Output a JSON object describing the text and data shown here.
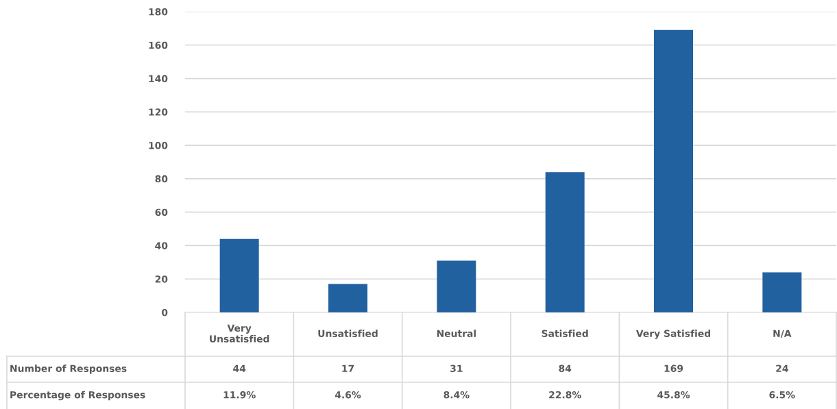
{
  "chart_data": {
    "type": "bar",
    "categories": [
      "Very Unsatisfied",
      "Unsatisfied",
      "Neutral",
      "Satisfied",
      "Very Satisfied",
      "N/A"
    ],
    "series": [
      {
        "name": "Number of Responses",
        "color": "#22619f",
        "values": [
          44,
          17,
          31,
          84,
          169,
          24
        ]
      }
    ],
    "data_labels": true,
    "annotations": [
      "Percentage of Responses",
      "11.9%",
      "4.6%",
      "8.4%",
      "22.8%",
      "45.8%",
      "6.5%"
    ],
    "ylim": [
      0,
      180
    ],
    "yticks": [
      0,
      20,
      40,
      60,
      80,
      100,
      120,
      140,
      160,
      180
    ],
    "grid": "y",
    "legend": false
  }
}
